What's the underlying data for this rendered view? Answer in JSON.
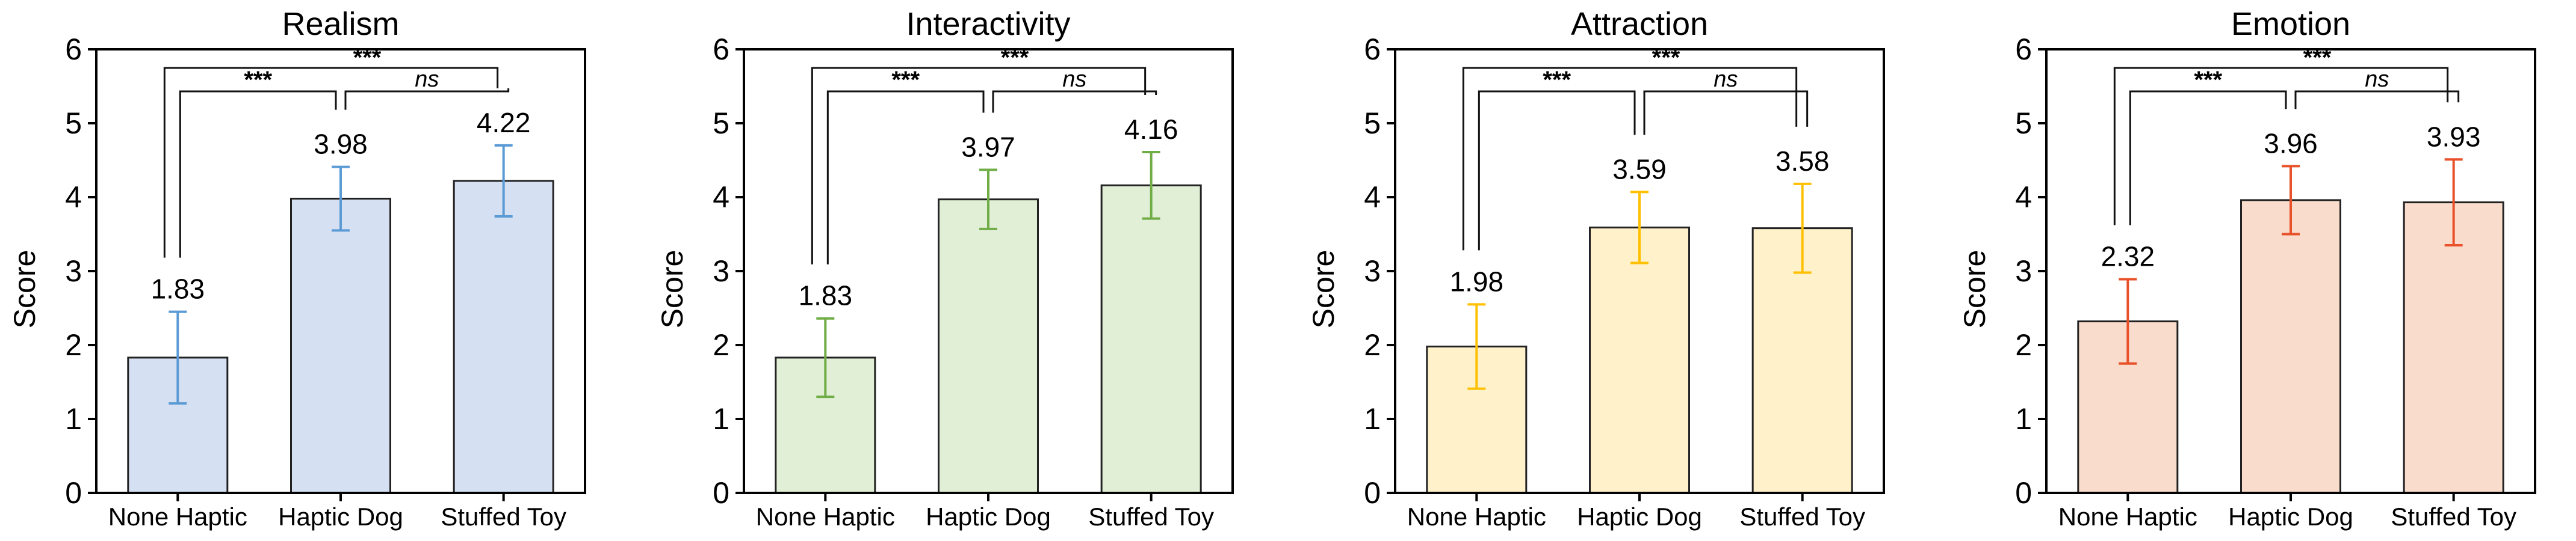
{
  "chart_data": [
    {
      "type": "bar",
      "title": "Realism",
      "ylabel": "Score",
      "xlabel": "",
      "ylim": [
        0,
        6
      ],
      "yticks": [
        "0",
        "1",
        "2",
        "3",
        "4",
        "5",
        "6"
      ],
      "categories": [
        "None Haptic",
        "Haptic Dog",
        "Stuffed Toy"
      ],
      "values": [
        1.83,
        3.98,
        4.22
      ],
      "value_labels": [
        "1.83",
        "3.98",
        "4.22"
      ],
      "errors": [
        0.62,
        0.43,
        0.48
      ],
      "colors": {
        "fill": "#d6e0f3",
        "error": "#5b9bd5"
      },
      "significance": [
        {
          "from": 0,
          "to": 1,
          "label": "***"
        },
        {
          "from": 0,
          "to": 2,
          "label": "***"
        },
        {
          "from": 1,
          "to": 2,
          "label": "ns"
        }
      ]
    },
    {
      "type": "bar",
      "title": "Interactivity",
      "ylabel": "Score",
      "xlabel": "",
      "ylim": [
        0,
        6
      ],
      "yticks": [
        "0",
        "1",
        "2",
        "3",
        "4",
        "5",
        "6"
      ],
      "categories": [
        "None Haptic",
        "Haptic Dog",
        "Stuffed Toy"
      ],
      "values": [
        1.83,
        3.97,
        4.16
      ],
      "value_labels": [
        "1.83",
        "3.97",
        "4.16"
      ],
      "errors": [
        0.53,
        0.4,
        0.45
      ],
      "colors": {
        "fill": "#e1efd6",
        "error": "#70ad47"
      },
      "significance": [
        {
          "from": 0,
          "to": 1,
          "label": "***"
        },
        {
          "from": 0,
          "to": 2,
          "label": "***"
        },
        {
          "from": 1,
          "to": 2,
          "label": "ns"
        }
      ]
    },
    {
      "type": "bar",
      "title": "Attraction",
      "ylabel": "Score",
      "xlabel": "",
      "ylim": [
        0,
        6
      ],
      "yticks": [
        "0",
        "1",
        "2",
        "3",
        "4",
        "5",
        "6"
      ],
      "categories": [
        "None Haptic",
        "Haptic Dog",
        "Stuffed Toy"
      ],
      "values": [
        1.98,
        3.59,
        3.58
      ],
      "value_labels": [
        "1.98",
        "3.59",
        "3.58"
      ],
      "errors": [
        0.57,
        0.48,
        0.6
      ],
      "colors": {
        "fill": "#fff1c9",
        "error": "#ffc000"
      },
      "significance": [
        {
          "from": 0,
          "to": 1,
          "label": "***"
        },
        {
          "from": 0,
          "to": 2,
          "label": "***"
        },
        {
          "from": 1,
          "to": 2,
          "label": "ns"
        }
      ]
    },
    {
      "type": "bar",
      "title": "Emotion",
      "ylabel": "Score",
      "xlabel": "",
      "ylim": [
        0,
        6
      ],
      "yticks": [
        "0",
        "1",
        "2",
        "3",
        "4",
        "5",
        "6"
      ],
      "categories": [
        "None Haptic",
        "Haptic Dog",
        "Stuffed Toy"
      ],
      "values": [
        2.32,
        3.96,
        3.93
      ],
      "value_labels": [
        "2.32",
        "3.96",
        "3.93"
      ],
      "errors": [
        0.57,
        0.46,
        0.58
      ],
      "colors": {
        "fill": "#f9dccc",
        "error": "#e8512a"
      },
      "significance": [
        {
          "from": 0,
          "to": 1,
          "label": "***"
        },
        {
          "from": 0,
          "to": 2,
          "label": "***"
        },
        {
          "from": 1,
          "to": 2,
          "label": "ns"
        }
      ]
    }
  ]
}
